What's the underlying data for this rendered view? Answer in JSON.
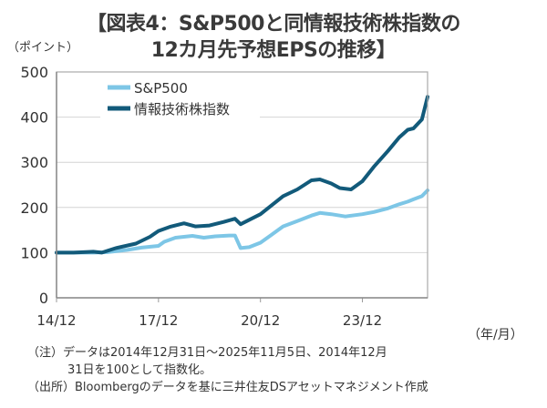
{
  "title_line1": "【図表4：S&P500と同情報技術株指数の",
  "title_line2": "12カ月先予想EPSの推移】",
  "notes": {
    "note1_line1": "（注）データは2014年12月31日～2025年11月5日、2014年12月",
    "note1_line2": "31日を100として指数化。",
    "source": "（出所）Bloombergのデータを基に三井住友DSアセットマネジメント作成"
  },
  "chart_data": {
    "type": "line",
    "title": "【図表4：S&P500と同情報技術株指数の12カ月先予想EPSの推移】",
    "ylabel": "（ポイント）",
    "xlabel": "（年/月）",
    "ylim": [
      0,
      500
    ],
    "yticks": [
      0,
      100,
      200,
      300,
      400,
      500
    ],
    "xlim": [
      "2014-12",
      "2025-11"
    ],
    "xticks": [
      {
        "value": "2014-12",
        "label": "14/12"
      },
      {
        "value": "2017-12",
        "label": "17/12"
      },
      {
        "value": "2020-12",
        "label": "20/12"
      },
      {
        "value": "2023-12",
        "label": "23/12"
      }
    ],
    "grid": "horizontal",
    "legend_position": "top-left",
    "series": [
      {
        "name": "S&P500",
        "color": "#7dc6e6",
        "x": [
          "2014-12",
          "2015-06",
          "2016-01",
          "2016-06",
          "2017-01",
          "2017-06",
          "2017-12",
          "2018-02",
          "2018-06",
          "2018-12",
          "2019-04",
          "2019-08",
          "2020-01",
          "2020-03",
          "2020-05",
          "2020-08",
          "2020-12",
          "2021-04",
          "2021-08",
          "2022-01",
          "2022-06",
          "2022-09",
          "2023-01",
          "2023-06",
          "2023-12",
          "2024-04",
          "2024-09",
          "2025-01",
          "2025-04",
          "2025-06",
          "2025-09",
          "2025-11"
        ],
        "values": [
          100,
          100,
          100,
          101,
          106,
          111,
          115,
          124,
          133,
          137,
          133,
          136,
          138,
          138,
          110,
          112,
          122,
          140,
          158,
          170,
          182,
          188,
          185,
          180,
          185,
          190,
          198,
          207,
          213,
          218,
          225,
          238
        ]
      },
      {
        "name": "情報技術株指数",
        "color": "#125a7a",
        "x": [
          "2014-12",
          "2015-06",
          "2016-01",
          "2016-04",
          "2016-09",
          "2017-04",
          "2017-09",
          "2017-12",
          "2018-04",
          "2018-09",
          "2019-01",
          "2019-06",
          "2019-11",
          "2020-03",
          "2020-05",
          "2020-12",
          "2021-04",
          "2021-08",
          "2022-01",
          "2022-06",
          "2022-09",
          "2023-01",
          "2023-04",
          "2023-08",
          "2023-12",
          "2024-04",
          "2024-09",
          "2025-01",
          "2025-04",
          "2025-06",
          "2025-09",
          "2025-11"
        ],
        "values": [
          100,
          100,
          102,
          100,
          110,
          120,
          135,
          148,
          157,
          165,
          158,
          160,
          168,
          175,
          163,
          185,
          205,
          225,
          240,
          260,
          262,
          253,
          243,
          240,
          258,
          290,
          325,
          355,
          372,
          375,
          395,
          445
        ]
      }
    ]
  }
}
